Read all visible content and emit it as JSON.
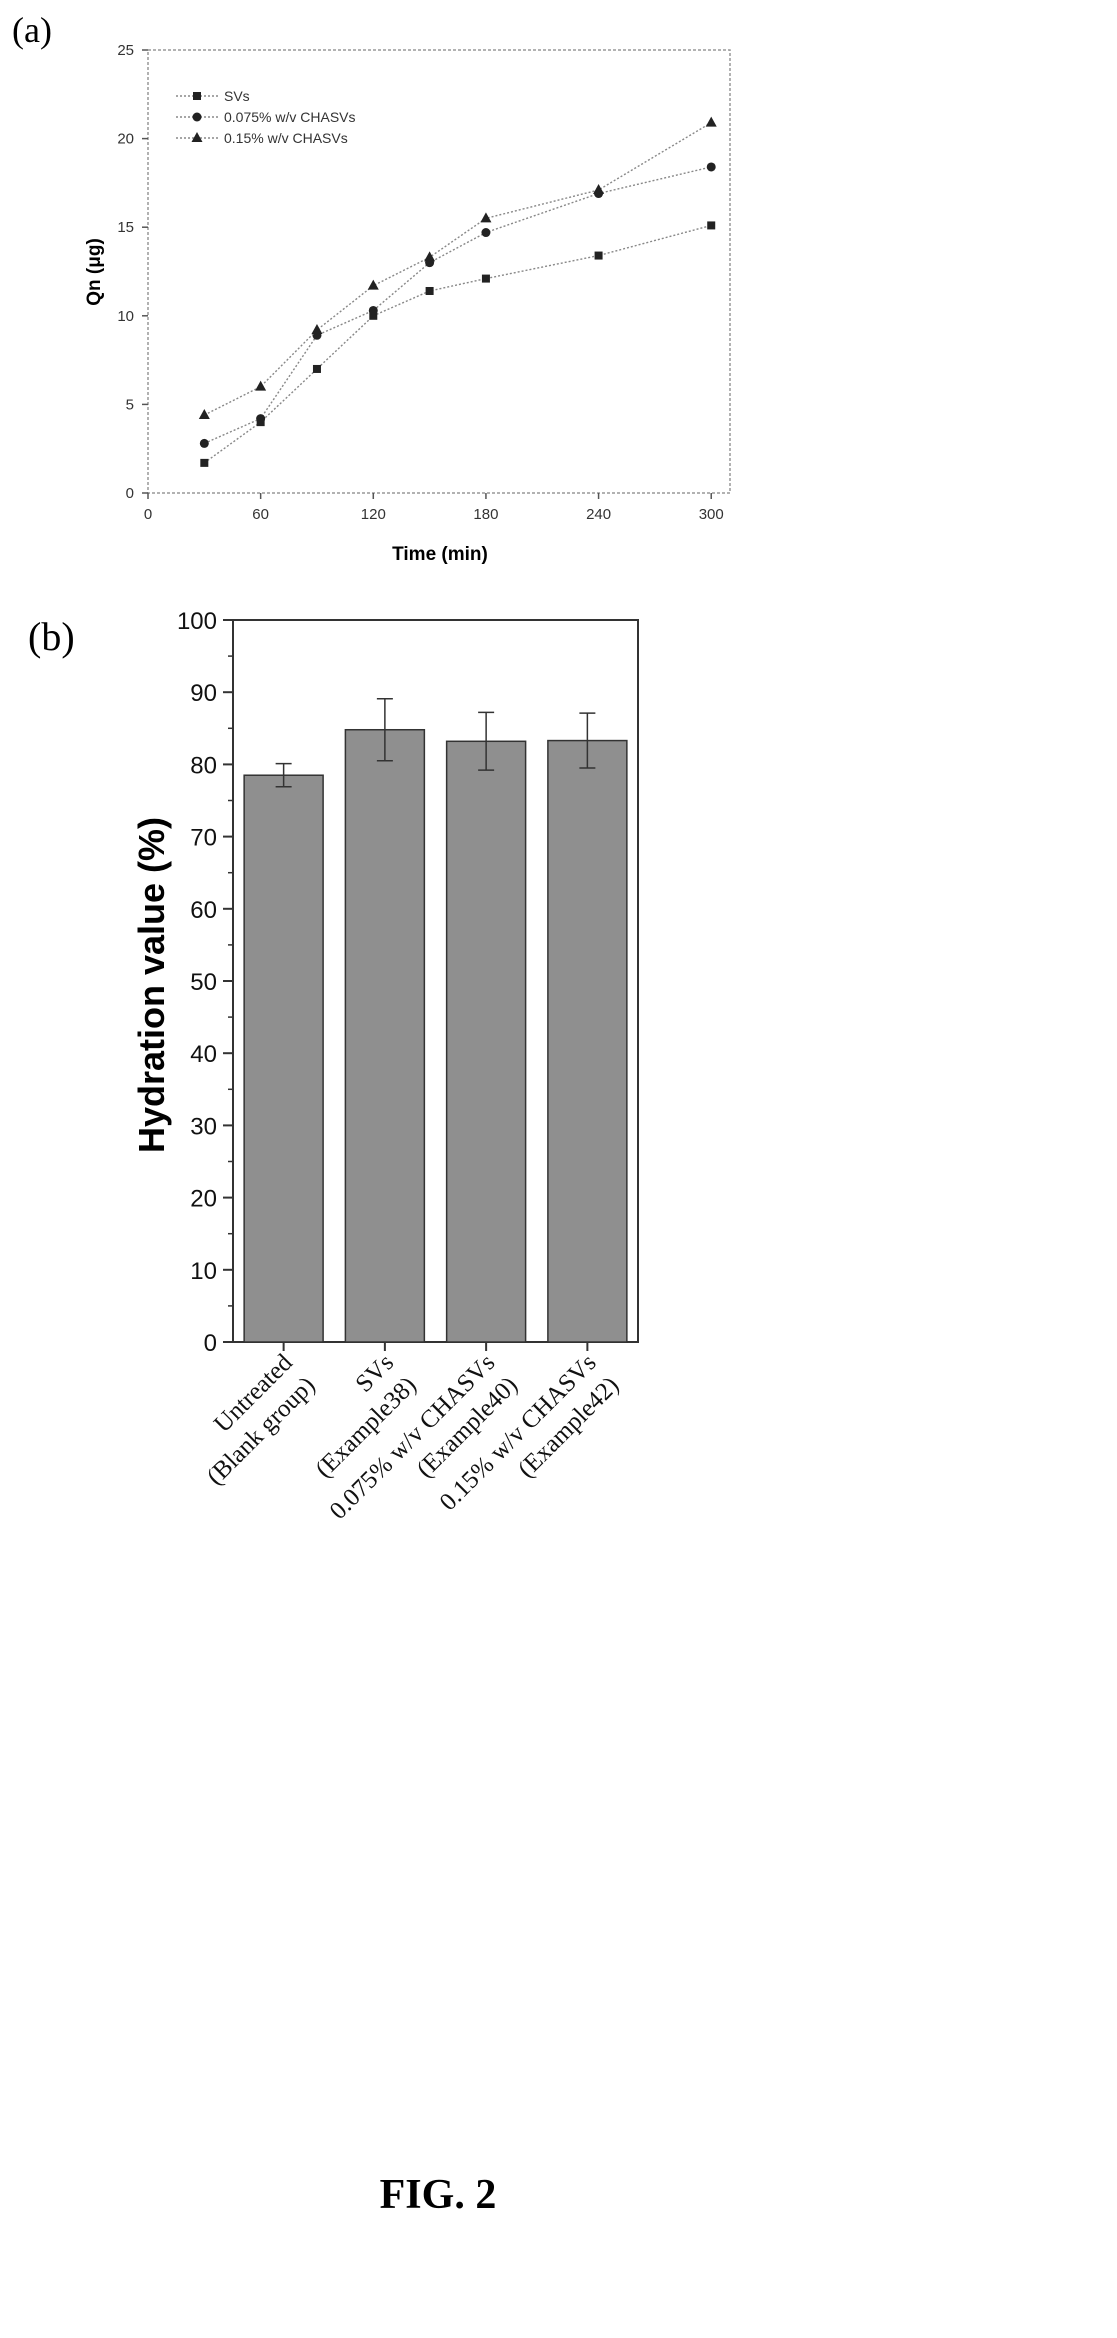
{
  "figure_caption": "FIG. 2",
  "chart_data": [
    {
      "panel_label": "(a)",
      "type": "line",
      "xlabel": "Time (min)",
      "ylabel": "Qn (μg)",
      "xlim": [
        0,
        310
      ],
      "ylim": [
        0,
        25
      ],
      "x_ticks": [
        0,
        60,
        120,
        180,
        240,
        300
      ],
      "y_ticks": [
        0,
        5,
        10,
        15,
        20,
        25
      ],
      "grid": false,
      "legend_position": "top-left",
      "x": [
        30,
        60,
        90,
        120,
        150,
        180,
        240,
        300
      ],
      "series": [
        {
          "name": "SVs",
          "marker": "square",
          "values": [
            1.7,
            4.0,
            7.0,
            10.0,
            11.4,
            12.1,
            13.4,
            15.1
          ]
        },
        {
          "name": "0.075% w/v CHASVs",
          "marker": "circle",
          "values": [
            2.8,
            4.2,
            8.9,
            10.3,
            13.0,
            14.7,
            16.9,
            18.4
          ]
        },
        {
          "name": "0.15% w/v CHASVs",
          "marker": "triangle",
          "values": [
            4.4,
            6.0,
            9.2,
            11.7,
            13.3,
            15.5,
            17.1,
            20.9
          ]
        }
      ]
    },
    {
      "panel_label": "(b)",
      "type": "bar",
      "ylabel": "Hydration value (%)",
      "ylim": [
        0,
        100
      ],
      "y_ticks": [
        0,
        10,
        20,
        30,
        40,
        50,
        60,
        70,
        80,
        90,
        100
      ],
      "grid": false,
      "categories": [
        "Untreated\n(Blank group)",
        "SVs\n(Example38)",
        "0.075% w/v CHASVs\n(Example40)",
        "0.15% w/v CHASVs\n(Example42)"
      ],
      "values": [
        78.5,
        84.8,
        83.2,
        83.3
      ],
      "errors": [
        1.6,
        4.3,
        4.0,
        3.8
      ]
    }
  ]
}
